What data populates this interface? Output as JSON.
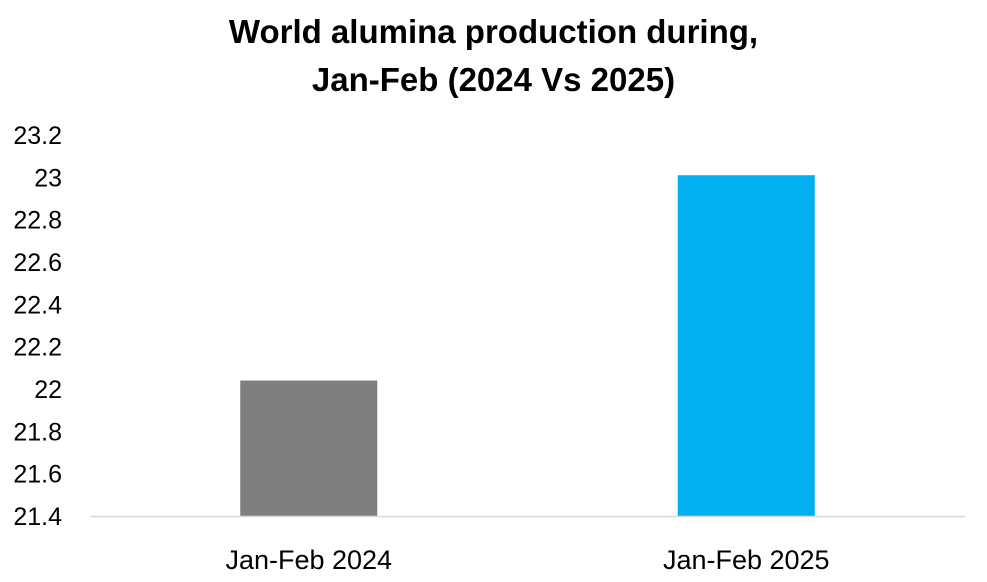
{
  "chart_data": {
    "type": "bar",
    "title_lines": [
      "World alumina production during,",
      "Jan-Feb (2024 Vs 2025)"
    ],
    "categories": [
      "Jan-Feb 2024",
      "Jan-Feb 2025"
    ],
    "values": [
      22.04,
      23.01
    ],
    "colors": [
      "#7f7f7f",
      "#00b0f0"
    ],
    "xlabel": "",
    "ylabel": "",
    "ylim": [
      21.4,
      23.2
    ],
    "yticks": [
      21.4,
      21.6,
      21.8,
      22,
      22.2,
      22.4,
      22.6,
      22.8,
      23,
      23.2
    ],
    "ytick_labels": [
      "21.4",
      "21.6",
      "21.8",
      "22",
      "22.2",
      "22.4",
      "22.6",
      "22.8",
      "23",
      "23.2"
    ],
    "grid": false,
    "legend": "none",
    "axis_color": "#d9d9d9"
  }
}
